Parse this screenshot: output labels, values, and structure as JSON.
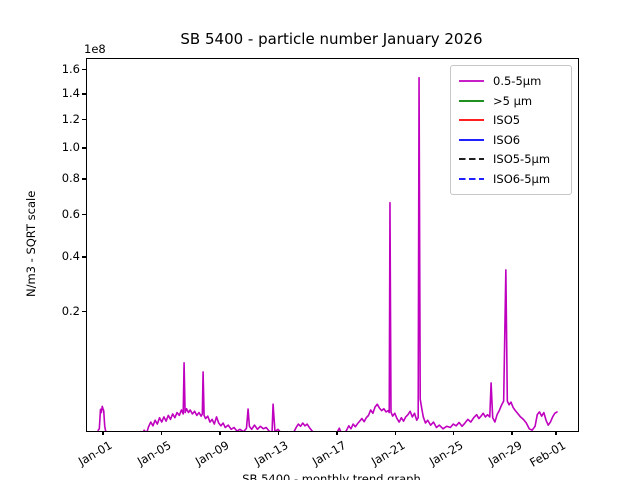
{
  "chart_data": {
    "type": "line",
    "title": "SB 5400 - particle number January 2026",
    "ylabel": "N/m3 - SQRT scale",
    "xlabel_partial": "SB 5400 - monthly trend graph",
    "y_offset_text": "1e8",
    "y_scale": "sqrt",
    "y_unit_multiplier": 100000000.0,
    "ylim": [
      0,
      1.7
    ],
    "grid": false,
    "yticks": [
      {
        "label": "1.6",
        "value": 1.6
      },
      {
        "label": "1.4",
        "value": 1.4
      },
      {
        "label": "1.2",
        "value": 1.2
      },
      {
        "label": "1.0",
        "value": 1.0
      },
      {
        "label": "0.8",
        "value": 0.8
      },
      {
        "label": "0.6",
        "value": 0.6
      },
      {
        "label": "0.4",
        "value": 0.4
      },
      {
        "label": "0.2",
        "value": 0.2
      }
    ],
    "xticks": [
      {
        "label": "Jan-01",
        "day": 1
      },
      {
        "label": "Jan-05",
        "day": 5
      },
      {
        "label": "Jan-09",
        "day": 9
      },
      {
        "label": "Jan-13",
        "day": 13
      },
      {
        "label": "Jan-17",
        "day": 17
      },
      {
        "label": "Jan-21",
        "day": 21
      },
      {
        "label": "Jan-25",
        "day": 25
      },
      {
        "label": "Jan-29",
        "day": 29
      },
      {
        "label": "Feb-01",
        "day": 32
      }
    ],
    "legend": {
      "position": "upper right",
      "entries": [
        {
          "label": "0.5-5μm",
          "color": "#bf00bf",
          "dash": "solid"
        },
        {
          "label": ">5 μm",
          "color": "#008000",
          "dash": "solid"
        },
        {
          "label": "ISO5",
          "color": "#ff0000",
          "dash": "solid"
        },
        {
          "label": "ISO6",
          "color": "#0000ff",
          "dash": "solid"
        },
        {
          "label": "ISO5-5μm",
          "color": "#000000",
          "dash": "dashed"
        },
        {
          "label": "ISO6-5μm",
          "color": "#0000ff",
          "dash": "dashed"
        }
      ]
    },
    "series": [
      {
        "name": "0.5-5μm",
        "color": "#bf00bf",
        "dash": "solid",
        "x_unit": "day of January 2026",
        "y_unit": "1e8 N/m3",
        "points": [
          [
            0.6,
            0.0025
          ],
          [
            0.68,
            0.003
          ],
          [
            0.76,
            0.0145
          ],
          [
            0.82,
            0.012
          ],
          [
            0.88,
            0.017
          ],
          [
            0.93,
            0.015
          ],
          [
            0.98,
            0.0135
          ],
          [
            1.05,
            0.004
          ],
          [
            1.15,
            0.0015
          ],
          [
            1.4,
            0.0008
          ],
          [
            1.8,
            0.0006
          ],
          [
            2.2,
            0.0007
          ],
          [
            2.6,
            0.0006
          ],
          [
            3.0,
            0.0007
          ],
          [
            3.3,
            0.0008
          ],
          [
            3.5,
            0.002
          ],
          [
            3.6,
            0.001
          ],
          [
            3.75,
            0.0025
          ],
          [
            3.9,
            0.0015
          ],
          [
            4.05,
            0.0038
          ],
          [
            4.2,
            0.006
          ],
          [
            4.35,
            0.0042
          ],
          [
            4.5,
            0.007
          ],
          [
            4.65,
            0.005
          ],
          [
            4.8,
            0.0085
          ],
          [
            4.95,
            0.006
          ],
          [
            5.1,
            0.009
          ],
          [
            5.25,
            0.0065
          ],
          [
            5.4,
            0.01
          ],
          [
            5.55,
            0.0075
          ],
          [
            5.7,
            0.011
          ],
          [
            5.85,
            0.0085
          ],
          [
            6.0,
            0.012
          ],
          [
            6.15,
            0.01
          ],
          [
            6.3,
            0.014
          ],
          [
            6.42,
            0.011
          ],
          [
            6.48,
            0.077
          ],
          [
            6.55,
            0.012
          ],
          [
            6.65,
            0.015
          ],
          [
            6.78,
            0.012
          ],
          [
            6.9,
            0.014
          ],
          [
            7.05,
            0.011
          ],
          [
            7.2,
            0.013
          ],
          [
            7.35,
            0.01
          ],
          [
            7.5,
            0.012
          ],
          [
            7.65,
            0.0095
          ],
          [
            7.73,
            0.011
          ],
          [
            7.78,
            0.061
          ],
          [
            7.85,
            0.01
          ],
          [
            7.95,
            0.008
          ],
          [
            8.1,
            0.0095
          ],
          [
            8.25,
            0.006
          ],
          [
            8.4,
            0.0075
          ],
          [
            8.55,
            0.005
          ],
          [
            8.7,
            0.009
          ],
          [
            8.85,
            0.0055
          ],
          [
            9.0,
            0.0042
          ],
          [
            9.15,
            0.0055
          ],
          [
            9.3,
            0.0035
          ],
          [
            9.5,
            0.0045
          ],
          [
            9.7,
            0.0028
          ],
          [
            9.9,
            0.0035
          ],
          [
            10.1,
            0.0022
          ],
          [
            10.3,
            0.0028
          ],
          [
            10.55,
            0.002
          ],
          [
            10.75,
            0.0032
          ],
          [
            10.86,
            0.0148
          ],
          [
            10.95,
            0.004
          ],
          [
            11.1,
            0.0028
          ],
          [
            11.3,
            0.0045
          ],
          [
            11.5,
            0.0028
          ],
          [
            11.7,
            0.004
          ],
          [
            11.9,
            0.003
          ],
          [
            12.1,
            0.0035
          ],
          [
            12.3,
            0.0022
          ],
          [
            12.5,
            0.0018
          ],
          [
            12.57,
            0.019
          ],
          [
            12.7,
            0.002
          ],
          [
            12.9,
            0.0028
          ],
          [
            13.1,
            0.0018
          ],
          [
            13.4,
            0.0012
          ],
          [
            13.7,
            0.0015
          ],
          [
            14.0,
            0.002
          ],
          [
            14.15,
            0.0035
          ],
          [
            14.3,
            0.005
          ],
          [
            14.45,
            0.004
          ],
          [
            14.6,
            0.0055
          ],
          [
            14.75,
            0.0042
          ],
          [
            14.9,
            0.005
          ],
          [
            15.05,
            0.0035
          ],
          [
            15.25,
            0.0022
          ],
          [
            15.55,
            0.0012
          ],
          [
            15.9,
            0.0008
          ],
          [
            16.3,
            0.0009
          ],
          [
            16.7,
            0.0008
          ],
          [
            16.95,
            0.0018
          ],
          [
            17.1,
            0.0032
          ],
          [
            17.25,
            0.0016
          ],
          [
            17.45,
            0.0014
          ],
          [
            17.6,
            0.0025
          ],
          [
            17.75,
            0.0042
          ],
          [
            17.9,
            0.003
          ],
          [
            18.05,
            0.005
          ],
          [
            18.2,
            0.0038
          ],
          [
            18.35,
            0.0052
          ],
          [
            18.5,
            0.0065
          ],
          [
            18.65,
            0.008
          ],
          [
            18.8,
            0.0062
          ],
          [
            18.95,
            0.0085
          ],
          [
            19.1,
            0.01
          ],
          [
            19.25,
            0.014
          ],
          [
            19.4,
            0.0115
          ],
          [
            19.55,
            0.0165
          ],
          [
            19.7,
            0.019
          ],
          [
            19.85,
            0.0155
          ],
          [
            20.0,
            0.0135
          ],
          [
            20.15,
            0.015
          ],
          [
            20.3,
            0.0125
          ],
          [
            20.45,
            0.0135
          ],
          [
            20.52,
            0.012
          ],
          [
            20.57,
            0.67
          ],
          [
            20.64,
            0.0125
          ],
          [
            20.75,
            0.0095
          ],
          [
            20.9,
            0.0115
          ],
          [
            21.05,
            0.008
          ],
          [
            21.2,
            0.006
          ],
          [
            21.35,
            0.0085
          ],
          [
            21.5,
            0.0065
          ],
          [
            21.65,
            0.009
          ],
          [
            21.8,
            0.0105
          ],
          [
            21.95,
            0.013
          ],
          [
            22.1,
            0.009
          ],
          [
            22.25,
            0.0115
          ],
          [
            22.4,
            0.007
          ],
          [
            22.5,
            0.0085
          ],
          [
            22.56,
            1.54
          ],
          [
            22.64,
            0.024
          ],
          [
            22.74,
            0.0155
          ],
          [
            22.85,
            0.009
          ],
          [
            23.0,
            0.0055
          ],
          [
            23.15,
            0.007
          ],
          [
            23.35,
            0.0045
          ],
          [
            23.55,
            0.006
          ],
          [
            23.75,
            0.0035
          ],
          [
            23.95,
            0.0045
          ],
          [
            24.2,
            0.003
          ],
          [
            24.45,
            0.004
          ],
          [
            24.7,
            0.0035
          ],
          [
            24.9,
            0.005
          ],
          [
            25.1,
            0.0042
          ],
          [
            25.3,
            0.0058
          ],
          [
            25.5,
            0.004
          ],
          [
            25.7,
            0.0055
          ],
          [
            25.9,
            0.0075
          ],
          [
            26.1,
            0.006
          ],
          [
            26.3,
            0.0085
          ],
          [
            26.5,
            0.0105
          ],
          [
            26.65,
            0.008
          ],
          [
            26.8,
            0.0095
          ],
          [
            26.95,
            0.0115
          ],
          [
            27.1,
            0.009
          ],
          [
            27.25,
            0.0105
          ],
          [
            27.4,
            0.009
          ],
          [
            27.49,
            0.044
          ],
          [
            27.6,
            0.0085
          ],
          [
            27.75,
            0.006
          ],
          [
            27.9,
            0.0105
          ],
          [
            28.05,
            0.0135
          ],
          [
            28.2,
            0.018
          ],
          [
            28.35,
            0.022
          ],
          [
            28.5,
            0.35
          ],
          [
            28.6,
            0.022
          ],
          [
            28.72,
            0.0185
          ],
          [
            28.85,
            0.021
          ],
          [
            29.0,
            0.016
          ],
          [
            29.15,
            0.0135
          ],
          [
            29.3,
            0.0115
          ],
          [
            29.5,
            0.009
          ],
          [
            29.7,
            0.0075
          ],
          [
            29.9,
            0.0055
          ],
          [
            30.1,
            0.003
          ],
          [
            30.3,
            0.0025
          ],
          [
            30.5,
            0.004
          ],
          [
            30.65,
            0.0105
          ],
          [
            30.8,
            0.0125
          ],
          [
            30.95,
            0.0095
          ],
          [
            31.1,
            0.012
          ],
          [
            31.25,
            0.007
          ],
          [
            31.4,
            0.0045
          ],
          [
            31.55,
            0.006
          ],
          [
            31.7,
            0.009
          ],
          [
            31.85,
            0.0115
          ],
          [
            32.0,
            0.0125
          ]
        ]
      },
      {
        "name": ">5 μm",
        "color": "#008000",
        "dash": "solid",
        "points": []
      },
      {
        "name": "ISO5",
        "color": "#ff0000",
        "dash": "solid",
        "points": []
      },
      {
        "name": "ISO6",
        "color": "#0000ff",
        "dash": "solid",
        "points": []
      },
      {
        "name": "ISO5-5μm",
        "color": "#000000",
        "dash": "dashed",
        "points": []
      },
      {
        "name": "ISO6-5μm",
        "color": "#0000ff",
        "dash": "dashed",
        "points": []
      }
    ]
  }
}
